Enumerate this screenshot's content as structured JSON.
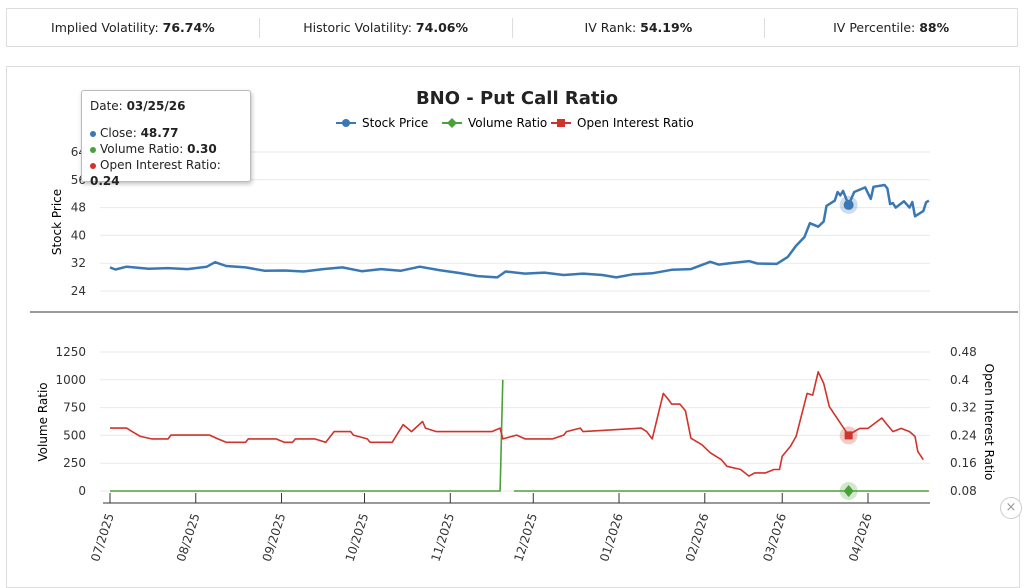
{
  "stats": [
    {
      "label": "Implied Volatility:",
      "value": "76.74%"
    },
    {
      "label": "Historic Volatility:",
      "value": "74.06%"
    },
    {
      "label": "IV Rank:",
      "value": "54.19%"
    },
    {
      "label": "IV Percentile:",
      "value": "88%"
    }
  ],
  "tooltip": {
    "date_label": "Date:",
    "date": "03/25/26",
    "close_label": "Close:",
    "close": "48.77",
    "vol_label": "Volume Ratio:",
    "vol": "0.30",
    "oi_label": "Open Interest Ratio:",
    "oi": "0.24"
  },
  "close_icon": "close-icon",
  "chart_data": {
    "type": "line",
    "title": "BNO - Put Call Ratio",
    "legend": [
      "Stock Price",
      "Volume Ratio",
      "Open Interest Ratio"
    ],
    "legend_placement": "top",
    "colors": {
      "price": "#3a78b5",
      "volume": "#4aa13a",
      "oi": "#d0332b"
    },
    "grid": true,
    "x_ticks": [
      "07/2025",
      "08/2025",
      "09/2025",
      "10/2025",
      "11/2025",
      "12/2025",
      "01/2026",
      "02/2026",
      "03/2026",
      "04/2026"
    ],
    "x_range": [
      "2025-07-01",
      "2026-04-23"
    ],
    "price_panel": {
      "ylabel": "Stock Price",
      "ylim": [
        24,
        64
      ],
      "y_ticks": [
        24,
        32,
        40,
        48,
        56,
        64
      ]
    },
    "ratio_panel": {
      "ylabel_left": "Volume Ratio",
      "ylim_left": [
        0,
        1250
      ],
      "y_ticks_left": [
        0,
        250,
        500,
        750,
        1000,
        1250
      ],
      "ylabel_right": "Open Interest Ratio",
      "ylim_right": [
        0.08,
        0.48
      ],
      "y_ticks_right": [
        "0.08",
        "0.16",
        "0.24",
        "0.32",
        "0.4",
        "0.48"
      ]
    },
    "highlight": {
      "date": "2026-03-25",
      "close": 48.77,
      "volume_ratio": 0.3,
      "oi_ratio": 0.24
    },
    "series": [
      {
        "name": "Stock Price",
        "points": [
          [
            "2025-07-01",
            30.8
          ],
          [
            "2025-07-03",
            30.2
          ],
          [
            "2025-07-07",
            31.0
          ],
          [
            "2025-07-15",
            30.4
          ],
          [
            "2025-07-22",
            30.6
          ],
          [
            "2025-07-29",
            30.3
          ],
          [
            "2025-08-05",
            31.0
          ],
          [
            "2025-08-08",
            32.3
          ],
          [
            "2025-08-12",
            31.2
          ],
          [
            "2025-08-19",
            30.8
          ],
          [
            "2025-08-26",
            29.8
          ],
          [
            "2025-09-02",
            29.9
          ],
          [
            "2025-09-09",
            29.6
          ],
          [
            "2025-09-16",
            30.3
          ],
          [
            "2025-09-23",
            30.8
          ],
          [
            "2025-09-30",
            29.7
          ],
          [
            "2025-10-07",
            30.3
          ],
          [
            "2025-10-14",
            29.8
          ],
          [
            "2025-10-21",
            31.0
          ],
          [
            "2025-10-28",
            30.0
          ],
          [
            "2025-11-04",
            29.2
          ],
          [
            "2025-11-11",
            28.3
          ],
          [
            "2025-11-18",
            27.9
          ],
          [
            "2025-11-21",
            29.6
          ],
          [
            "2025-11-28",
            29.0
          ],
          [
            "2025-12-05",
            29.3
          ],
          [
            "2025-12-12",
            28.6
          ],
          [
            "2025-12-19",
            29.0
          ],
          [
            "2025-12-26",
            28.6
          ],
          [
            "2025-12-31",
            27.9
          ],
          [
            "2026-01-06",
            28.8
          ],
          [
            "2026-01-13",
            29.1
          ],
          [
            "2026-01-20",
            30.1
          ],
          [
            "2026-01-27",
            30.3
          ],
          [
            "2026-02-03",
            32.4
          ],
          [
            "2026-02-06",
            31.6
          ],
          [
            "2026-02-10",
            32.0
          ],
          [
            "2026-02-17",
            32.6
          ],
          [
            "2026-02-20",
            31.9
          ],
          [
            "2026-02-27",
            31.8
          ],
          [
            "2026-03-03",
            33.8
          ],
          [
            "2026-03-06",
            37.0
          ],
          [
            "2026-03-09",
            39.5
          ],
          [
            "2026-03-11",
            43.5
          ],
          [
            "2026-03-14",
            42.5
          ],
          [
            "2026-03-16",
            44.0
          ],
          [
            "2026-03-17",
            48.5
          ],
          [
            "2026-03-20",
            50.0
          ],
          [
            "2026-03-21",
            52.5
          ],
          [
            "2026-03-22",
            51.5
          ],
          [
            "2026-03-23",
            52.8
          ],
          [
            "2026-03-25",
            48.77
          ],
          [
            "2026-03-27",
            52.5
          ],
          [
            "2026-03-31",
            53.8
          ],
          [
            "2026-04-02",
            50.5
          ],
          [
            "2026-04-03",
            54.0
          ],
          [
            "2026-04-07",
            54.5
          ],
          [
            "2026-04-08",
            53.5
          ],
          [
            "2026-04-09",
            49.0
          ],
          [
            "2026-04-10",
            49.3
          ],
          [
            "2026-04-11",
            48.0
          ],
          [
            "2026-04-14",
            49.8
          ],
          [
            "2026-04-16",
            48.0
          ],
          [
            "2026-04-17",
            49.6
          ],
          [
            "2026-04-18",
            45.5
          ],
          [
            "2026-04-21",
            47.0
          ],
          [
            "2026-04-22",
            49.5
          ],
          [
            "2026-04-23",
            50.0
          ]
        ]
      },
      {
        "name": "Volume Ratio",
        "points": [
          [
            "2025-07-01",
            0.3
          ],
          [
            "2025-11-19",
            0.3
          ],
          [
            "2025-11-20",
            1000
          ],
          [
            "2025-11-21",
            null
          ],
          [
            "2025-11-24",
            0.3
          ],
          [
            "2026-04-23",
            0.3
          ]
        ]
      },
      {
        "name": "Open Interest Ratio",
        "points": [
          [
            "2025-07-01",
            0.261
          ],
          [
            "2025-07-07",
            0.261
          ],
          [
            "2025-07-09",
            0.251
          ],
          [
            "2025-07-12",
            0.237
          ],
          [
            "2025-07-16",
            0.23
          ],
          [
            "2025-07-22",
            0.23
          ],
          [
            "2025-07-23",
            0.241
          ],
          [
            "2025-08-06",
            0.241
          ],
          [
            "2025-08-09",
            0.23
          ],
          [
            "2025-08-12",
            0.22
          ],
          [
            "2025-08-19",
            0.22
          ],
          [
            "2025-08-20",
            0.23
          ],
          [
            "2025-08-30",
            0.23
          ],
          [
            "2025-09-02",
            0.22
          ],
          [
            "2025-09-05",
            0.22
          ],
          [
            "2025-09-06",
            0.23
          ],
          [
            "2025-09-13",
            0.23
          ],
          [
            "2025-09-17",
            0.22
          ],
          [
            "2025-09-20",
            0.251
          ],
          [
            "2025-09-26",
            0.251
          ],
          [
            "2025-09-27",
            0.241
          ],
          [
            "2025-10-02",
            0.23
          ],
          [
            "2025-10-03",
            0.22
          ],
          [
            "2025-10-11",
            0.22
          ],
          [
            "2025-10-15",
            0.271
          ],
          [
            "2025-10-18",
            0.251
          ],
          [
            "2025-10-22",
            0.28
          ],
          [
            "2025-10-23",
            0.261
          ],
          [
            "2025-10-27",
            0.251
          ],
          [
            "2025-11-16",
            0.251
          ],
          [
            "2025-11-19",
            0.261
          ],
          [
            "2025-11-20",
            0.23
          ],
          [
            "2025-11-25",
            0.241
          ],
          [
            "2025-11-28",
            0.23
          ],
          [
            "2025-12-08",
            0.23
          ],
          [
            "2025-12-12",
            0.241
          ],
          [
            "2025-12-13",
            0.251
          ],
          [
            "2025-12-18",
            0.261
          ],
          [
            "2025-12-19",
            0.251
          ],
          [
            "2026-01-09",
            0.261
          ],
          [
            "2026-01-11",
            0.251
          ],
          [
            "2026-01-13",
            0.23
          ],
          [
            "2026-01-17",
            0.361
          ],
          [
            "2026-01-19",
            0.342
          ],
          [
            "2026-01-20",
            0.33
          ],
          [
            "2026-01-23",
            0.33
          ],
          [
            "2026-01-25",
            0.311
          ],
          [
            "2026-01-27",
            0.232
          ],
          [
            "2026-01-31",
            0.213
          ],
          [
            "2026-02-03",
            0.19
          ],
          [
            "2026-02-07",
            0.17
          ],
          [
            "2026-02-09",
            0.151
          ],
          [
            "2026-02-14",
            0.142
          ],
          [
            "2026-02-17",
            0.123
          ],
          [
            "2026-02-19",
            0.132
          ],
          [
            "2026-02-23",
            0.132
          ],
          [
            "2026-02-26",
            0.142
          ],
          [
            "2026-02-28",
            0.142
          ],
          [
            "2026-03-01",
            0.18
          ],
          [
            "2026-03-04",
            0.209
          ],
          [
            "2026-03-06",
            0.237
          ],
          [
            "2026-03-08",
            0.299
          ],
          [
            "2026-03-10",
            0.361
          ],
          [
            "2026-03-12",
            0.356
          ],
          [
            "2026-03-14",
            0.423
          ],
          [
            "2026-03-16",
            0.39
          ],
          [
            "2026-03-18",
            0.323
          ],
          [
            "2026-03-25",
            0.24
          ],
          [
            "2026-03-27",
            0.251
          ],
          [
            "2026-03-29",
            0.26
          ],
          [
            "2026-04-01",
            0.26
          ],
          [
            "2026-04-06",
            0.29
          ],
          [
            "2026-04-08",
            0.27
          ],
          [
            "2026-04-10",
            0.251
          ],
          [
            "2026-04-13",
            0.26
          ],
          [
            "2026-04-16",
            0.251
          ],
          [
            "2026-04-18",
            0.237
          ],
          [
            "2026-04-19",
            0.194
          ],
          [
            "2026-04-21",
            0.17
          ]
        ]
      }
    ]
  }
}
